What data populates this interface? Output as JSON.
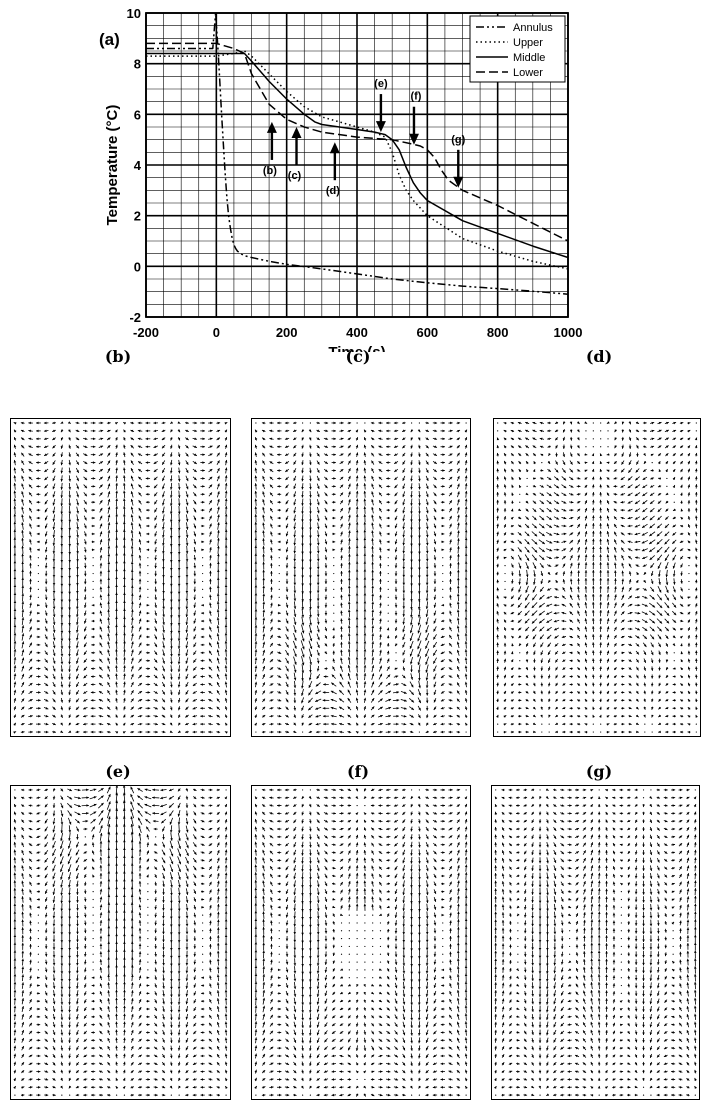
{
  "chart_data": [
    {
      "type": "line",
      "panel_label": "(a)",
      "xlabel": "Time (s)",
      "ylabel": "Temperature (°C)",
      "xlim": [
        -200,
        1000
      ],
      "ylim": [
        -2,
        10
      ],
      "xticks": [
        "-200",
        "0",
        "200",
        "400",
        "600",
        "800",
        "1000"
      ],
      "yticks": [
        "-2",
        "0",
        "2",
        "4",
        "6",
        "8",
        "10"
      ],
      "grid": true,
      "legend_position": "top-right",
      "series": [
        {
          "name": "Annulus",
          "dash": "8,3,2,3,2,3",
          "x": [
            -200,
            -10,
            -2,
            0,
            5,
            10,
            15,
            20,
            25,
            30,
            35,
            40,
            45,
            50,
            55,
            60,
            70,
            80,
            100,
            150,
            200,
            300,
            400,
            500,
            600,
            700,
            800,
            900,
            1000
          ],
          "y": [
            8.6,
            8.6,
            10.0,
            9.6,
            8.5,
            7.3,
            6.0,
            4.8,
            3.7,
            2.7,
            2.0,
            1.5,
            1.1,
            0.85,
            0.7,
            0.6,
            0.5,
            0.42,
            0.35,
            0.2,
            0.08,
            -0.1,
            -0.3,
            -0.5,
            -0.65,
            -0.78,
            -0.88,
            -0.98,
            -1.1
          ]
        },
        {
          "name": "Upper",
          "dash": "1.5,3",
          "x": [
            -200,
            0,
            50,
            80,
            100,
            150,
            200,
            250,
            300,
            350,
            400,
            450,
            480,
            500,
            520,
            540,
            560,
            600,
            700,
            800,
            900,
            1000
          ],
          "y": [
            8.3,
            8.3,
            8.4,
            8.5,
            8.3,
            7.6,
            6.9,
            6.3,
            5.9,
            5.7,
            5.5,
            5.3,
            5.1,
            4.5,
            3.6,
            3.0,
            2.6,
            2.0,
            1.1,
            0.6,
            0.2,
            -0.1
          ]
        },
        {
          "name": "Middle",
          "dash": "",
          "x": [
            -200,
            0,
            50,
            80,
            100,
            150,
            200,
            250,
            280,
            300,
            400,
            450,
            480,
            500,
            520,
            540,
            560,
            580,
            600,
            700,
            800,
            900,
            1000
          ],
          "y": [
            8.4,
            8.4,
            8.4,
            8.4,
            8.1,
            7.3,
            6.6,
            6.0,
            5.7,
            5.6,
            5.4,
            5.3,
            5.2,
            5.0,
            4.6,
            3.9,
            3.3,
            2.9,
            2.6,
            1.8,
            1.3,
            0.8,
            0.35
          ]
        },
        {
          "name": "Lower",
          "dash": "9,4",
          "x": [
            -200,
            0,
            50,
            80,
            100,
            150,
            200,
            250,
            300,
            400,
            500,
            550,
            580,
            600,
            620,
            640,
            660,
            680,
            700,
            800,
            900,
            1000
          ],
          "y": [
            8.8,
            8.8,
            8.6,
            8.4,
            7.6,
            6.4,
            5.8,
            5.5,
            5.3,
            5.1,
            5.0,
            4.85,
            4.75,
            4.6,
            4.3,
            3.8,
            3.4,
            3.2,
            3.0,
            2.4,
            1.7,
            1.0
          ]
        }
      ],
      "annotations": [
        {
          "label": "(b)",
          "time": 158,
          "temp": 5.7,
          "direction": "up"
        },
        {
          "label": "(c)",
          "time": 228,
          "temp": 5.5,
          "direction": "up"
        },
        {
          "label": "(d)",
          "time": 337,
          "temp": 4.9,
          "direction": "up"
        },
        {
          "label": "(e)",
          "time": 468,
          "temp": 5.3,
          "direction": "down"
        },
        {
          "label": "(f)",
          "time": 562,
          "temp": 4.8,
          "direction": "down"
        },
        {
          "label": "(g)",
          "time": 688,
          "temp": 3.1,
          "direction": "down"
        }
      ]
    },
    {
      "type": "vector-field",
      "panel_label": "(b)",
      "field_pattern": "tall-loops",
      "description_of_flow": "two tall counter-rotating cells"
    },
    {
      "type": "vector-field",
      "panel_label": "(c)",
      "field_pattern": "tall-loops-bottom-eddies"
    },
    {
      "type": "vector-field",
      "panel_label": "(d)",
      "field_pattern": "mid-vortices"
    },
    {
      "type": "vector-field",
      "panel_label": "(e)",
      "field_pattern": "upper-eddies-center-down"
    },
    {
      "type": "vector-field",
      "panel_label": "(f)",
      "field_pattern": "center-up-loops"
    },
    {
      "type": "vector-field",
      "panel_label": "(g)",
      "field_pattern": "broad-loops"
    }
  ],
  "colors": {
    "ink": "#000000",
    "background": "#ffffff",
    "grid": "#000000"
  }
}
